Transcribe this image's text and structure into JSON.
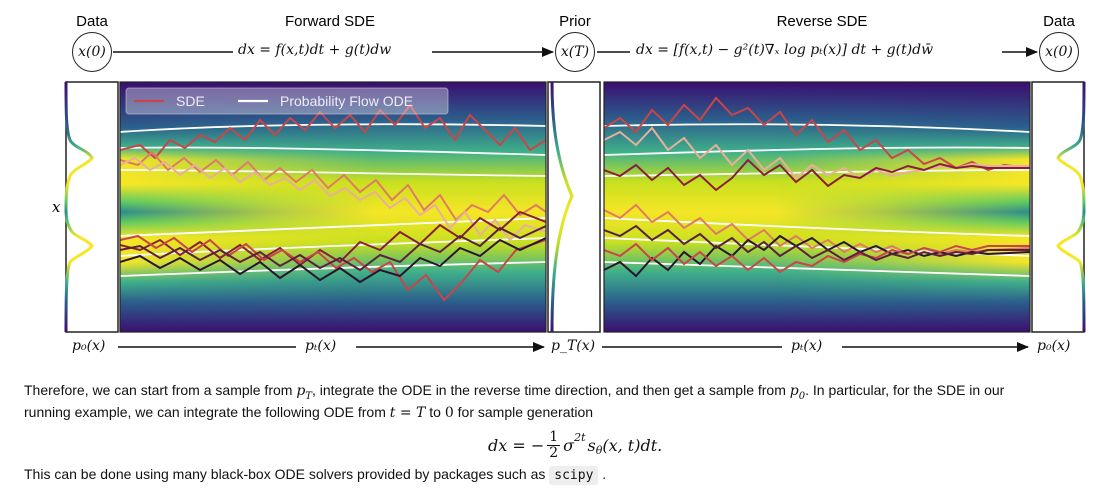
{
  "figure": {
    "header_labels": {
      "data_left": "Data",
      "forward_sde": "Forward SDE",
      "prior": "Prior",
      "reverse_sde": "Reverse SDE",
      "data_right": "Data"
    },
    "nodes": {
      "x0_left": "x(0)",
      "xT": "x(T)",
      "x0_right": "x(0)"
    },
    "forward_equation": "dx = f(x,t)dt + g(t)dw",
    "reverse_equation": "dx = [f(x,t) − g²(t)∇ₓ log pₜ(x)] dt + g(t)dw̄",
    "y_axis_label": "x",
    "legend": {
      "sde": "SDE",
      "ode": "Probability Flow ODE"
    },
    "bottom_labels": {
      "p0_left": "p₀(x)",
      "pt_left": "pₜ(x)",
      "pT": "p_T(x)",
      "pt_right": "pₜ(x)",
      "p0_right": "p₀(x)"
    },
    "colors": {
      "sde_line": "#c8464a",
      "ode_line": "#ffffff",
      "density_low": "#3b0f70",
      "density_high": "#f5e626"
    }
  },
  "text": {
    "para1_a": "Therefore, we can start from a sample from ",
    "para1_pT": "p",
    "para1_pT_sub": "T",
    "para1_b": ", integrate the ODE in the reverse time direction, and then get a sample from ",
    "para1_p0": "p",
    "para1_p0_sub": "0",
    "para1_c": ". In particular, for the SDE in our",
    "para2_a": "running example, we can integrate the following ODE from ",
    "para2_t": "t = T",
    "para2_b": " to ",
    "para2_zero": "0",
    "para2_c": " for sample generation",
    "equation": {
      "lhs": "dx = −",
      "frac_num": "1",
      "frac_den": "2",
      "sigma": "σ",
      "sup": "2t",
      "rest": "s",
      "theta": "θ",
      "args": "(x, t)dt."
    },
    "para3_a": "This can be done using many black-box ODE solvers provided by packages such as ",
    "para3_code": "scipy",
    "para3_b": " ."
  }
}
